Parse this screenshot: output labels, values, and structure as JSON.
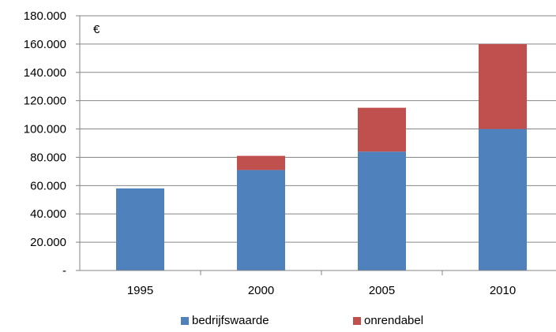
{
  "chart_data": {
    "type": "bar",
    "stacked": true,
    "categories": [
      "1995",
      "2000",
      "2005",
      "2010"
    ],
    "series": [
      {
        "name": "bedrijfswaarde",
        "values": [
          58000,
          71000,
          84000,
          100000
        ],
        "color": "#4F81BD"
      },
      {
        "name": "onrendabel",
        "values": [
          0,
          10000,
          31000,
          60000
        ],
        "color": "#C0504D"
      }
    ],
    "unit_label": "€",
    "ylim": [
      0,
      180000
    ],
    "y_ticks": [
      "-",
      "20.000",
      "40.000",
      "60.000",
      "80.000",
      "100.000",
      "120.000",
      "140.000",
      "160.000",
      "180.000"
    ],
    "grid": true,
    "legend_position": "bottom"
  }
}
